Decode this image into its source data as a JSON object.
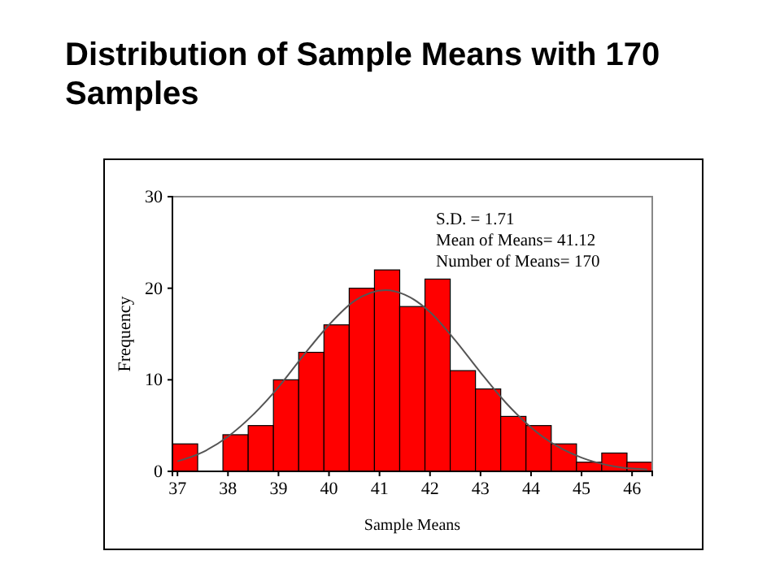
{
  "chart_data": {
    "type": "histogram",
    "title": "Distribution of Sample Means with 170 Samples",
    "xlabel": "Sample Means",
    "ylabel": "Frequency",
    "annotations": [
      "S.D. = 1.71",
      "Mean of Means= 41.12",
      "Number of Means= 170"
    ],
    "bins": [
      36.9,
      37.4,
      37.9,
      38.4,
      38.9,
      39.4,
      39.9,
      40.4,
      40.9,
      41.4,
      41.9,
      42.4,
      42.9,
      43.4,
      43.9,
      44.4,
      44.9,
      45.4,
      45.9,
      46.4
    ],
    "series": [
      {
        "color": "#ff0000",
        "values": [
          3,
          0,
          4,
          5,
          10,
          13,
          16,
          20,
          22,
          18,
          21,
          11,
          9,
          6,
          5,
          3,
          1,
          2,
          1
        ]
      },
      {
        "type": "line",
        "color": "#555555",
        "x": [
          37,
          37.5,
          38,
          38.5,
          39,
          39.5,
          40,
          40.5,
          41.12,
          41.5,
          42,
          42.5,
          43,
          43.5,
          44,
          44.5,
          45,
          45.5,
          46,
          46.3
        ],
        "values": [
          1.1,
          2.1,
          3.8,
          6.2,
          9.2,
          12.7,
          16,
          18.6,
          19.8,
          19.3,
          17.4,
          14.3,
          10.8,
          7.5,
          4.8,
          2.8,
          1.5,
          0.7,
          0.3,
          0.2
        ]
      }
    ],
    "xlim": [
      36.9,
      46.4
    ],
    "xticks": [
      37,
      38,
      39,
      40,
      41,
      42,
      43,
      44,
      45,
      46
    ],
    "ylim": [
      0,
      30
    ],
    "yticks": [
      0,
      10,
      20,
      30
    ],
    "grid": false
  }
}
